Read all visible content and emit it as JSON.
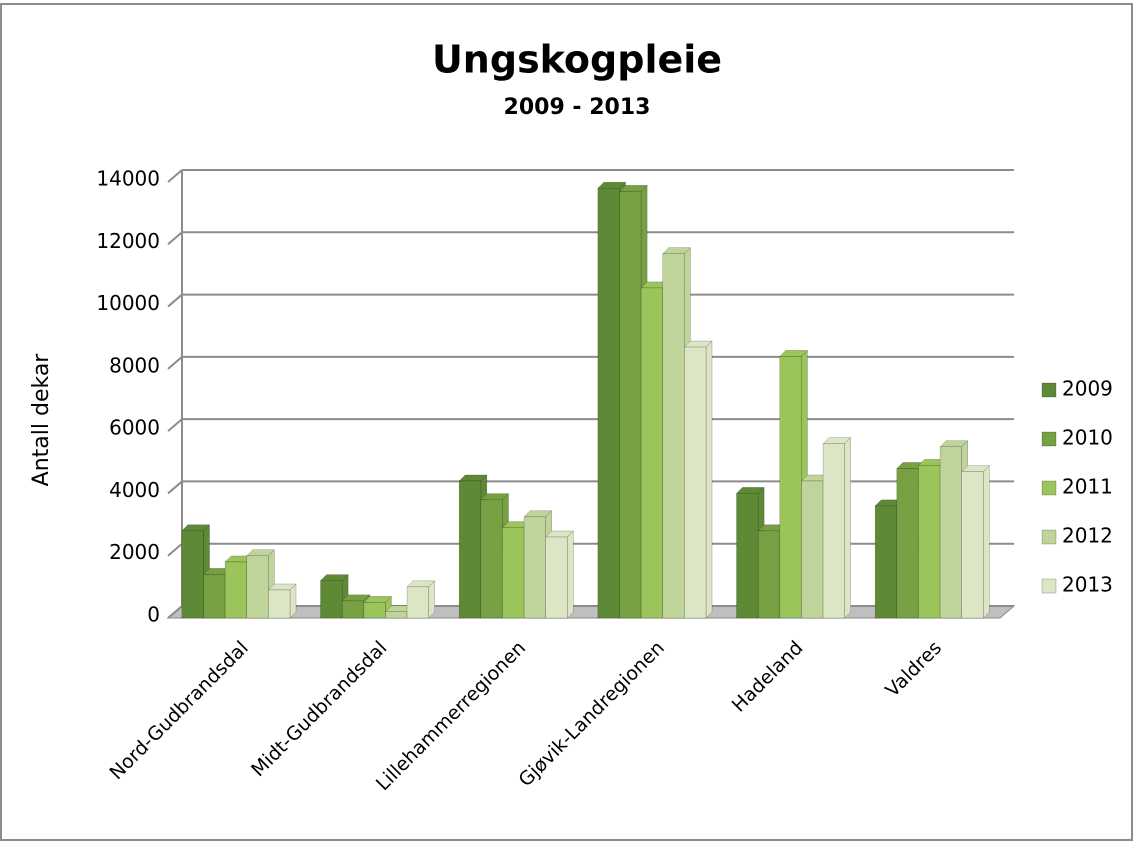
{
  "chart_data": {
    "type": "bar3d",
    "title": "Ungskogpleie",
    "subtitle": "2009 - 2013",
    "y_label": "Antall dekar",
    "categories": [
      "Nord-Gudbrandsdal",
      "Midt-Gudbrandsdal",
      "Lillehammerregionen",
      "Gjøvik-Landregionen",
      "Hadeland",
      "Valdres"
    ],
    "series": [
      {
        "name": "2009",
        "color": "#5f8a35",
        "values": [
          2800,
          1200,
          4400,
          13800,
          4000,
          3600
        ]
      },
      {
        "name": "2010",
        "color": "#77a043",
        "values": [
          1400,
          550,
          3800,
          13700,
          2800,
          4800
        ]
      },
      {
        "name": "2011",
        "color": "#9bc45a",
        "values": [
          1800,
          500,
          2900,
          10600,
          8400,
          4900
        ]
      },
      {
        "name": "2012",
        "color": "#bfd49a",
        "values": [
          2000,
          200,
          3250,
          11700,
          4400,
          5500
        ]
      },
      {
        "name": "2013",
        "color": "#dce6c4",
        "values": [
          900,
          1000,
          2600,
          8700,
          5600,
          4700
        ]
      }
    ],
    "ylim": [
      0,
      14000
    ],
    "yticks": [
      0,
      2000,
      4000,
      6000,
      8000,
      10000,
      12000,
      14000
    ],
    "grid": true,
    "legend": "right"
  }
}
